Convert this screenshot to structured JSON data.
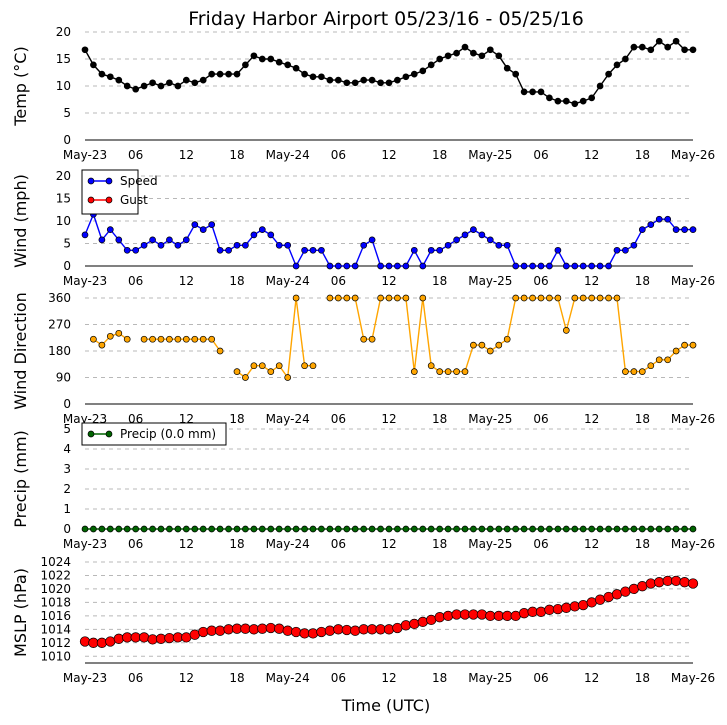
{
  "chart_data": {
    "type": "line",
    "title": "Friday Harbor Airport 05/23/16 - 05/25/16",
    "xlabel": "Time (UTC)",
    "x_ticks": [
      "May-23",
      "06",
      "12",
      "18",
      "May-24",
      "06",
      "12",
      "18",
      "May-25",
      "06",
      "12",
      "18",
      "May-26"
    ],
    "x_range_hours": [
      0,
      72
    ],
    "x_hours": [
      0,
      1,
      2,
      3,
      4,
      5,
      6,
      7,
      8,
      9,
      10,
      11,
      12,
      13,
      14,
      15,
      16,
      17,
      18,
      19,
      20,
      21,
      22,
      23,
      24,
      25,
      26,
      27,
      28,
      29,
      30,
      31,
      32,
      33,
      34,
      35,
      36,
      37,
      38,
      39,
      40,
      41,
      42,
      43,
      44,
      45,
      46,
      47,
      48,
      49,
      50,
      51,
      52,
      53,
      54,
      55,
      56,
      57,
      58,
      59,
      60,
      61,
      62,
      63,
      64,
      65,
      66,
      67,
      68,
      69,
      70,
      71,
      72
    ],
    "panels": [
      {
        "id": "temp",
        "ylabel": "Temp (°C)",
        "ylim": [
          0,
          20
        ],
        "yticks": [
          "0",
          "5",
          "10",
          "15",
          "20"
        ],
        "series": [
          {
            "name": "Temp",
            "color": "#000000",
            "values": [
              16.7,
              13.9,
              12.2,
              11.7,
              11.1,
              10.0,
              9.4,
              10.0,
              10.6,
              10.0,
              10.6,
              10.0,
              11.1,
              10.6,
              11.1,
              12.2,
              12.2,
              12.2,
              12.2,
              13.9,
              15.6,
              15.0,
              15.0,
              14.4,
              13.9,
              13.3,
              12.2,
              11.7,
              11.7,
              11.1,
              11.1,
              10.6,
              10.6,
              11.1,
              11.1,
              10.6,
              10.6,
              11.1,
              11.7,
              12.2,
              12.8,
              13.9,
              15.0,
              15.6,
              16.1,
              17.2,
              16.1,
              15.6,
              16.7,
              15.6,
              13.3,
              12.2,
              8.9,
              8.9,
              8.9,
              7.8,
              7.2,
              7.2,
              6.7,
              7.2,
              7.8,
              10.0,
              12.2,
              13.9,
              15.0,
              17.2,
              17.2,
              16.7,
              18.3,
              17.2,
              18.3,
              16.7,
              16.7
            ]
          }
        ]
      },
      {
        "id": "wind",
        "ylabel": "Wind (mph)",
        "ylim": [
          0,
          20
        ],
        "yticks": [
          "0",
          "5",
          "10",
          "15",
          "20"
        ],
        "legend": "top-left",
        "series": [
          {
            "name": "Speed",
            "color": "#0000ff",
            "values": [
              6.9,
              11.5,
              5.8,
              8.1,
              5.8,
              3.5,
              3.5,
              4.6,
              5.8,
              4.6,
              5.8,
              4.6,
              5.8,
              9.2,
              8.1,
              9.2,
              3.5,
              3.5,
              4.6,
              4.6,
              6.9,
              8.1,
              6.9,
              4.6,
              4.6,
              0,
              3.5,
              3.5,
              3.5,
              0,
              0,
              0,
              0,
              4.6,
              5.8,
              0,
              0,
              0,
              0,
              3.5,
              0,
              3.5,
              3.5,
              4.6,
              5.8,
              6.9,
              8.1,
              6.9,
              5.8,
              4.6,
              4.6,
              0,
              0,
              0,
              0,
              0,
              3.5,
              0,
              0,
              0,
              0,
              0,
              0,
              3.5,
              3.5,
              4.6,
              8.1,
              9.2,
              10.4,
              10.4,
              8.1,
              8.1,
              8.1
            ]
          },
          {
            "name": "Gust",
            "color": "#ff0000",
            "values": []
          }
        ]
      },
      {
        "id": "wdir",
        "ylabel": "Wind Direction",
        "ylim": [
          0,
          360
        ],
        "yticks": [
          "0",
          "90",
          "180",
          "270",
          "360"
        ],
        "series": [
          {
            "name": "Direction",
            "color": "#ffa500",
            "values": [
              null,
              220,
              200,
              230,
              240,
              220,
              null,
              220,
              220,
              220,
              220,
              220,
              220,
              220,
              220,
              220,
              180,
              null,
              110,
              90,
              130,
              130,
              110,
              130,
              90,
              360,
              130,
              130,
              null,
              360,
              360,
              360,
              360,
              220,
              220,
              360,
              360,
              360,
              360,
              110,
              360,
              130,
              110,
              110,
              110,
              110,
              200,
              200,
              180,
              200,
              220,
              360,
              360,
              360,
              360,
              360,
              360,
              250,
              360,
              360,
              360,
              360,
              360,
              360,
              110,
              110,
              110,
              130,
              150,
              150,
              180,
              200,
              200
            ]
          }
        ]
      },
      {
        "id": "precip",
        "ylabel": "Precip (mm)",
        "ylim": [
          0,
          5
        ],
        "yticks": [
          "0",
          "1",
          "2",
          "3",
          "4",
          "5"
        ],
        "legend": "top-left",
        "series": [
          {
            "name": "Precip (0.0 mm)",
            "color": "#006400",
            "values": [
              0,
              0,
              0,
              0,
              0,
              0,
              0,
              0,
              0,
              0,
              0,
              0,
              0,
              0,
              0,
              0,
              0,
              0,
              0,
              0,
              0,
              0,
              0,
              0,
              0,
              0,
              0,
              0,
              0,
              0,
              0,
              0,
              0,
              0,
              0,
              0,
              0,
              0,
              0,
              0,
              0,
              0,
              0,
              0,
              0,
              0,
              0,
              0,
              0,
              0,
              0,
              0,
              0,
              0,
              0,
              0,
              0,
              0,
              0,
              0,
              0,
              0,
              0,
              0,
              0,
              0,
              0,
              0,
              0,
              0,
              0,
              0,
              0
            ]
          }
        ]
      },
      {
        "id": "mslp",
        "ylabel": "MSLP (hPa)",
        "ylim": [
          1009,
          1024
        ],
        "yticks": [
          "1010",
          "1012",
          "1014",
          "1016",
          "1018",
          "1020",
          "1022",
          "1024"
        ],
        "series": [
          {
            "name": "MSLP",
            "color": "#ff0000",
            "values": [
              1012.2,
              1012.0,
              1012.0,
              1012.2,
              1012.6,
              1012.8,
              1012.8,
              1012.8,
              1012.5,
              1012.6,
              1012.7,
              1012.8,
              1012.8,
              1013.2,
              1013.6,
              1013.8,
              1013.8,
              1014.0,
              1014.1,
              1014.1,
              1014.0,
              1014.1,
              1014.2,
              1014.1,
              1013.8,
              1013.6,
              1013.4,
              1013.4,
              1013.6,
              1013.8,
              1014.0,
              1013.9,
              1013.8,
              1014.0,
              1014.0,
              1014.0,
              1014.0,
              1014.2,
              1014.6,
              1014.8,
              1015.1,
              1015.4,
              1015.8,
              1016.0,
              1016.2,
              1016.2,
              1016.2,
              1016.2,
              1016.0,
              1016.0,
              1016.0,
              1016.0,
              1016.4,
              1016.6,
              1016.6,
              1016.9,
              1017.0,
              1017.2,
              1017.4,
              1017.6,
              1018.0,
              1018.4,
              1018.8,
              1019.2,
              1019.6,
              1020.0,
              1020.4,
              1020.8,
              1021.0,
              1021.2,
              1021.2,
              1021.0,
              1020.8
            ]
          }
        ]
      }
    ]
  }
}
